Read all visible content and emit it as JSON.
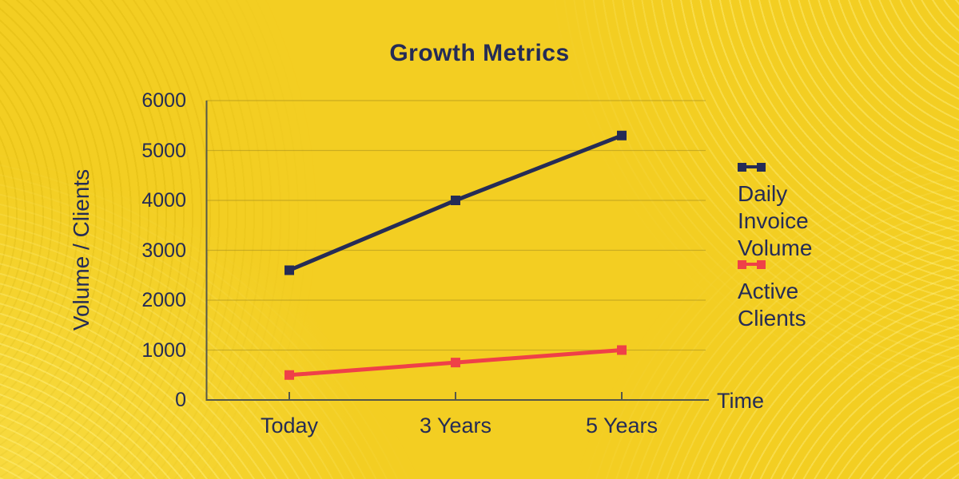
{
  "title": "Growth Metrics",
  "chart_data": {
    "type": "line",
    "title": "Growth Metrics",
    "categories": [
      "Today",
      "3 Years",
      "5 Years"
    ],
    "series": [
      {
        "name": "Daily Invoice Volume",
        "values": [
          2600,
          4000,
          5300
        ],
        "color": "#252C56"
      },
      {
        "name": "Active Clients",
        "values": [
          500,
          750,
          1000
        ],
        "color": "#EF4048"
      }
    ],
    "xlabel": "Time",
    "ylabel": "Volume / Clients",
    "ylim": [
      0,
      6000
    ],
    "yticks": [
      0,
      1000,
      2000,
      3000,
      4000,
      5000,
      6000
    ],
    "grid": true,
    "legend_position": "right",
    "marker": "square"
  },
  "colors": {
    "background": "#F3CE22",
    "text": "#252C56",
    "gridline": "#A7901F",
    "axis": "#56584A",
    "series_daily_invoice_volume": "#252C56",
    "series_active_clients": "#EF4048"
  }
}
